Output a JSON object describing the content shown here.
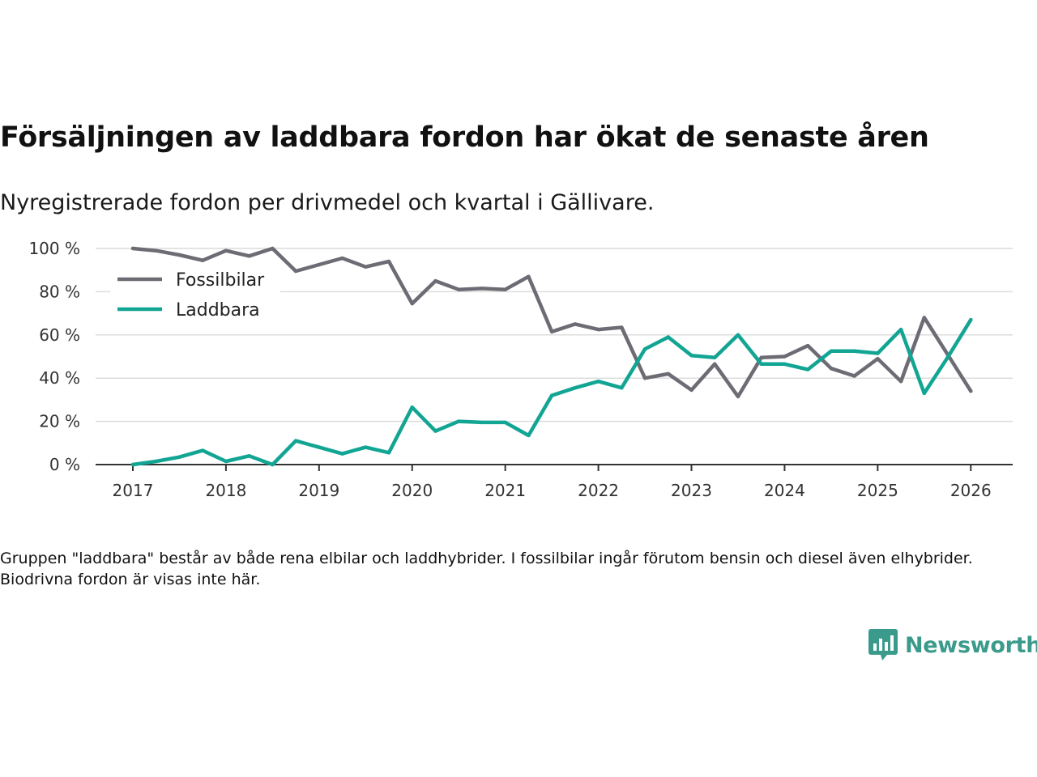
{
  "title": "Försäljningen av laddbara fordon har ökat de senaste åren",
  "subtitle": "Nyregistrerade fordon per drivmedel och kvartal i Gällivare.",
  "note": "Gruppen \"laddbara\" består av både rena elbilar och laddhybrider. I fossilbilar ingår förutom bensin och diesel även elhybrider. Biodrivna fordon är visas inte här.",
  "logo": {
    "text": "Newsworthy",
    "color": "#3a9a8c"
  },
  "chart_data": {
    "type": "line",
    "title": "Försäljningen av laddbara fordon har ökat de senaste åren",
    "xlabel": "",
    "ylabel": "",
    "xlim": [
      2016.6,
      2026.45
    ],
    "ylim": [
      0,
      100
    ],
    "x_ticks": [
      2017,
      2018,
      2019,
      2020,
      2021,
      2022,
      2023,
      2024,
      2025,
      2026
    ],
    "y_ticks": [
      0,
      20,
      40,
      60,
      80,
      100
    ],
    "y_tick_labels": [
      "0 %",
      "20 %",
      "40 %",
      "60 %",
      "80 %",
      "100 %"
    ],
    "grid": "horizontal",
    "legend_position": "top-left",
    "x": [
      2017.0,
      2017.25,
      2017.5,
      2017.75,
      2018.0,
      2018.25,
      2018.5,
      2018.75,
      2019.0,
      2019.25,
      2019.5,
      2019.75,
      2020.0,
      2020.25,
      2020.5,
      2020.75,
      2021.0,
      2021.25,
      2021.5,
      2021.75,
      2022.0,
      2022.25,
      2022.5,
      2022.75,
      2023.0,
      2023.25,
      2023.5,
      2023.75,
      2024.0,
      2024.25,
      2024.5,
      2024.75,
      2025.0,
      2025.25,
      2025.5,
      2025.75,
      2026.0
    ],
    "series": [
      {
        "name": "Fossilbilar",
        "color": "#6d6c74",
        "values": [
          100,
          99,
          97,
          94.5,
          99,
          96.5,
          100,
          89.5,
          92.5,
          95.5,
          91.5,
          94,
          74.5,
          85,
          81,
          81.5,
          81,
          87,
          61.5,
          65,
          62.5,
          63.5,
          40,
          42,
          34.5,
          46.5,
          31.5,
          49.5,
          50,
          55,
          44.5,
          41,
          49,
          38.5,
          68,
          51,
          34
        ]
      },
      {
        "name": "Laddbara",
        "color": "#12a594",
        "values": [
          0,
          1.5,
          3.5,
          6.5,
          1.5,
          4,
          0,
          11,
          8,
          5,
          8,
          5.5,
          26.5,
          15.5,
          20,
          19.5,
          19.5,
          13.5,
          32,
          35.5,
          38.5,
          35.5,
          53.5,
          59,
          50.5,
          49.5,
          60,
          46.5,
          46.5,
          44,
          52.5,
          52.5,
          51.5,
          62.5,
          33,
          49.5,
          67
        ]
      }
    ]
  }
}
